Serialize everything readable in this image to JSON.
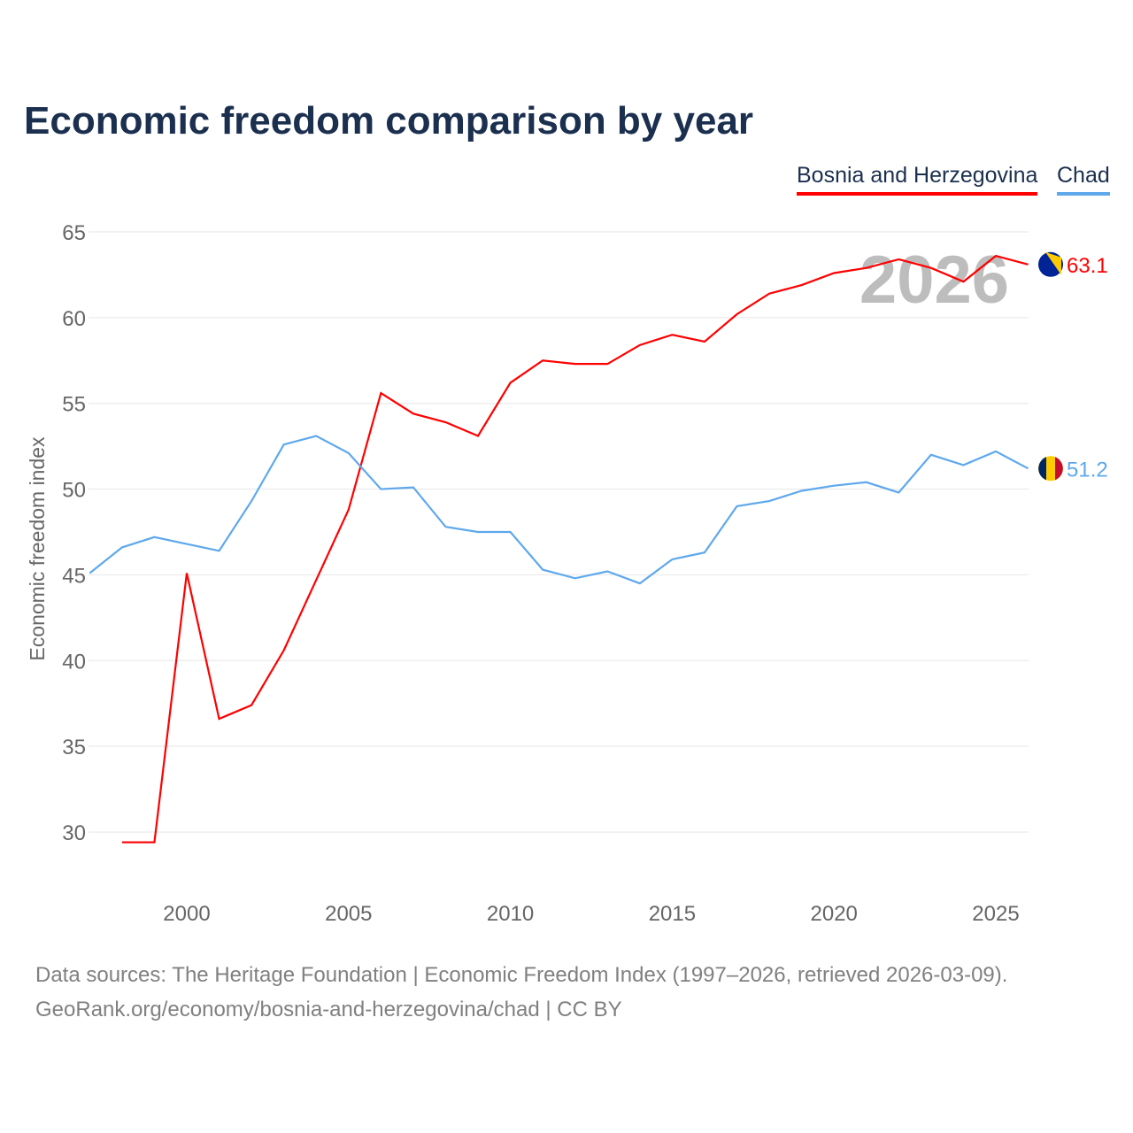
{
  "chart_data": {
    "type": "line",
    "title": "Economic freedom comparison by year",
    "ylabel": "Economic freedom index",
    "xlabel": "",
    "xlim": [
      1997,
      2026
    ],
    "ylim": [
      26.5,
      67
    ],
    "yticks": [
      30,
      35,
      40,
      45,
      50,
      55,
      60,
      65
    ],
    "xticks": [
      2000,
      2005,
      2010,
      2015,
      2020,
      2025
    ],
    "grid": true,
    "legend_position": "top-right",
    "watermark_year": "2026",
    "series": [
      {
        "name": "Bosnia and Herzegovina",
        "color": "#ff0000",
        "end_label": "63.1",
        "x": [
          1998,
          1999,
          2000,
          2001,
          2002,
          2003,
          2004,
          2005,
          2006,
          2007,
          2008,
          2009,
          2010,
          2011,
          2012,
          2013,
          2014,
          2015,
          2016,
          2017,
          2018,
          2019,
          2020,
          2021,
          2022,
          2023,
          2024,
          2025,
          2026
        ],
        "values": [
          29.4,
          29.4,
          45.1,
          36.6,
          37.4,
          40.6,
          44.7,
          48.8,
          55.6,
          54.4,
          53.9,
          53.1,
          56.2,
          57.5,
          57.3,
          57.3,
          58.4,
          59.0,
          58.6,
          60.2,
          61.4,
          61.9,
          62.6,
          62.9,
          63.4,
          62.9,
          62.1,
          63.6,
          63.1
        ]
      },
      {
        "name": "Chad",
        "color": "#5ea8ec",
        "end_label": "51.2",
        "x": [
          1997,
          1998,
          1999,
          2000,
          2001,
          2002,
          2003,
          2004,
          2005,
          2006,
          2007,
          2008,
          2009,
          2010,
          2011,
          2012,
          2013,
          2014,
          2015,
          2016,
          2017,
          2018,
          2019,
          2020,
          2021,
          2022,
          2023,
          2024,
          2025,
          2026
        ],
        "values": [
          45.1,
          46.6,
          47.2,
          46.8,
          46.4,
          49.3,
          52.6,
          53.1,
          52.1,
          50.0,
          50.1,
          47.8,
          47.5,
          47.5,
          45.3,
          44.8,
          45.2,
          44.5,
          45.9,
          46.3,
          49.0,
          49.3,
          49.9,
          50.2,
          50.4,
          49.8,
          52.0,
          51.4,
          52.2,
          51.2
        ]
      }
    ]
  },
  "footer": {
    "line1": "Data sources: The Heritage Foundation | Economic Freedom Index (1997–2026, retrieved 2026-03-09).",
    "line2": "GeoRank.org/economy/bosnia-and-herzegovina/chad | CC BY"
  }
}
